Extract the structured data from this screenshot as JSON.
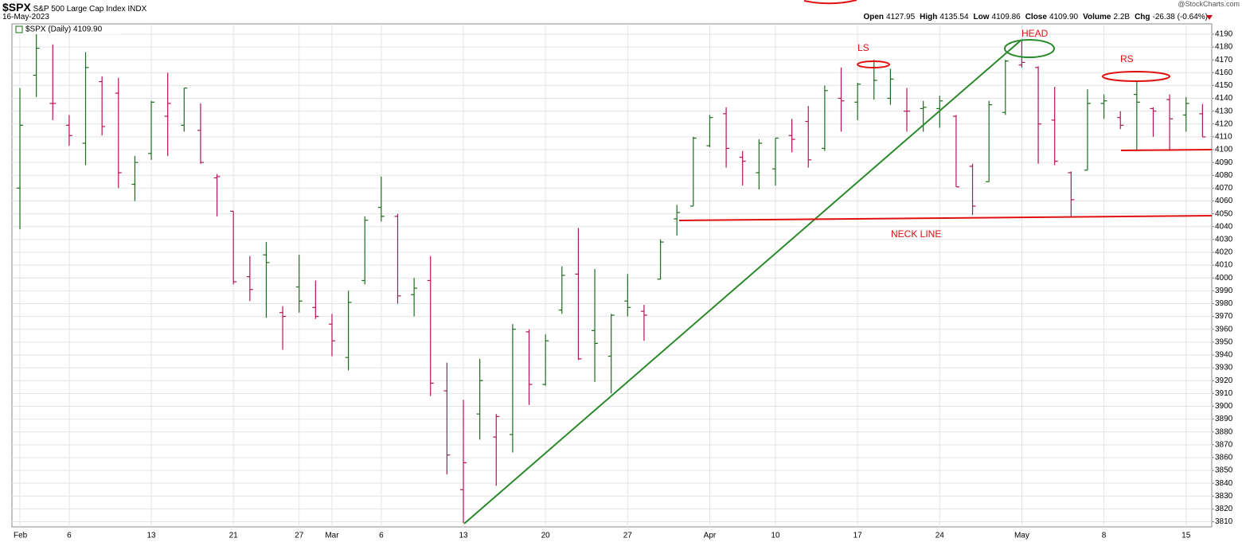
{
  "chart_data": {
    "type": "ohlc",
    "header": {
      "symbol": "$SPX",
      "name": "S&P 500 Large Cap Index",
      "exchange": "INDX",
      "date": "16-May-2023",
      "watermark": "@StockCharts.com",
      "stats": [
        {
          "label": "Open",
          "value": "4127.95"
        },
        {
          "label": "High",
          "value": "4135.54"
        },
        {
          "label": "Low",
          "value": "4109.86"
        },
        {
          "label": "Close",
          "value": "4109.90"
        },
        {
          "label": "Volume",
          "value": "2.2B"
        },
        {
          "label": "Chg",
          "value": "-26.38 (-0.64%)"
        }
      ]
    },
    "legend": "$SPX (Daily) 4109.90",
    "annotations": [
      "LS",
      "HEAD",
      "RS",
      "NECK LINE"
    ],
    "up_color": "#1a6e1a",
    "down_color": "#b0145a",
    "grid": true,
    "ylim": [
      3806,
      4198
    ],
    "yticks": [
      3810,
      3820,
      3830,
      3840,
      3850,
      3860,
      3870,
      3880,
      3890,
      3900,
      3910,
      3920,
      3930,
      3940,
      3950,
      3960,
      3970,
      3980,
      3990,
      4000,
      4010,
      4020,
      4030,
      4040,
      4050,
      4060,
      4070,
      4080,
      4090,
      4100,
      4110,
      4120,
      4130,
      4140,
      4150,
      4160,
      4170,
      4180,
      4190
    ],
    "categories": [
      "Feb",
      null,
      null,
      "6",
      null,
      null,
      null,
      null,
      "13",
      null,
      null,
      null,
      null,
      "21",
      null,
      null,
      null,
      "27",
      null,
      "Mar",
      null,
      null,
      "6",
      null,
      null,
      null,
      null,
      "13",
      null,
      null,
      null,
      null,
      "20",
      null,
      null,
      null,
      null,
      "27",
      null,
      null,
      null,
      null,
      "Apr",
      null,
      null,
      null,
      "10",
      null,
      null,
      null,
      null,
      "17",
      null,
      null,
      null,
      null,
      "24",
      null,
      null,
      null,
      null,
      "May",
      null,
      null,
      null,
      null,
      "8",
      null,
      null,
      null,
      null,
      "15",
      null
    ],
    "open": [
      4070,
      4158,
      4136,
      4119,
      4105,
      4153,
      4144,
      4073,
      4097,
      4126,
      4119,
      4115,
      4078,
      4052,
      4001,
      4018,
      3973,
      3993,
      3977,
      3964,
      3938,
      3998,
      4055,
      4048,
      3987,
      3998,
      3912,
      3835,
      3894,
      3876,
      3878,
      3958,
      3917,
      3975,
      4003,
      3959,
      3939,
      3982,
      3974,
      3999,
      4046,
      4056,
      4103,
      4128,
      4094,
      4082,
      4085,
      4111,
      4122,
      4101,
      4140,
      4137,
      4164,
      4140,
      4130,
      4132,
      4132,
      4126,
      4087,
      4075,
      4129,
      4166,
      4164,
      4123,
      4082,
      4084,
      4136,
      4125,
      4143,
      4132,
      4139,
      4127,
      4127.95
    ],
    "high": [
      4148,
      4195,
      4182,
      4127,
      4176,
      4157,
      4156,
      4095,
      4138,
      4160,
      4148,
      4136,
      4081,
      4052,
      4017,
      4028,
      3978,
      4018,
      3998,
      3972,
      3990,
      4048,
      4079,
      4050,
      4000,
      4017,
      3934,
      3905,
      3937,
      3894,
      3964,
      3960,
      3956,
      4009,
      4039,
      4007,
      3972,
      4003,
      3979,
      4030,
      4057,
      4110,
      4127,
      4133,
      4099,
      4108,
      4109,
      4124,
      4134,
      4150,
      4164,
      4152,
      4170,
      4163,
      4148,
      4138,
      4142,
      4127,
      4089,
      4138,
      4170,
      4186,
      4165,
      4149,
      4083,
      4147,
      4143,
      4130,
      4154,
      4133,
      4143,
      4141,
      4135.54
    ],
    "low": [
      4038,
      4141,
      4123,
      4103,
      4088,
      4111,
      4070,
      4060,
      4092,
      4095,
      4114,
      4089,
      4048,
      3995,
      3982,
      3969,
      3944,
      3973,
      3968,
      3939,
      3928,
      3995,
      4044,
      3980,
      3970,
      3908,
      3847,
      3809,
      3874,
      3838,
      3864,
      3901,
      3916,
      3972,
      3936,
      3919,
      3910,
      3970,
      3951,
      3999,
      4033,
      4056,
      4102,
      4086,
      4072,
      4069,
      4072,
      4098,
      4086,
      4099,
      4114,
      4123,
      4139,
      4135,
      4114,
      4114,
      4117,
      4071,
      4049,
      4075,
      4127,
      4164,
      4089,
      4088,
      4048,
      4084,
      4124,
      4116,
      4099,
      4110,
      4099,
      4114,
      4109.86
    ],
    "close": [
      4119,
      4179,
      4136,
      4111,
      4164,
      4118,
      4082,
      4090,
      4137,
      4136,
      4148,
      4090,
      4079,
      3997,
      3991,
      4012,
      3970,
      3982,
      3970,
      3951,
      3981,
      4045,
      4048,
      3986,
      3992,
      3918,
      3862,
      3856,
      3920,
      3892,
      3960,
      3917,
      3951,
      4002,
      3937,
      3949,
      3971,
      3977,
      3971,
      4028,
      4051,
      4109,
      4125,
      4101,
      4091,
      4105,
      4109,
      4108,
      4092,
      4146,
      4138,
      4151,
      4154,
      4155,
      4130,
      4133,
      4138,
      4071,
      4056,
      4135,
      4169,
      4168,
      4120,
      4091,
      4061,
      4136,
      4138,
      4119,
      4137,
      4130,
      4124,
      4136,
      4109.9
    ]
  }
}
